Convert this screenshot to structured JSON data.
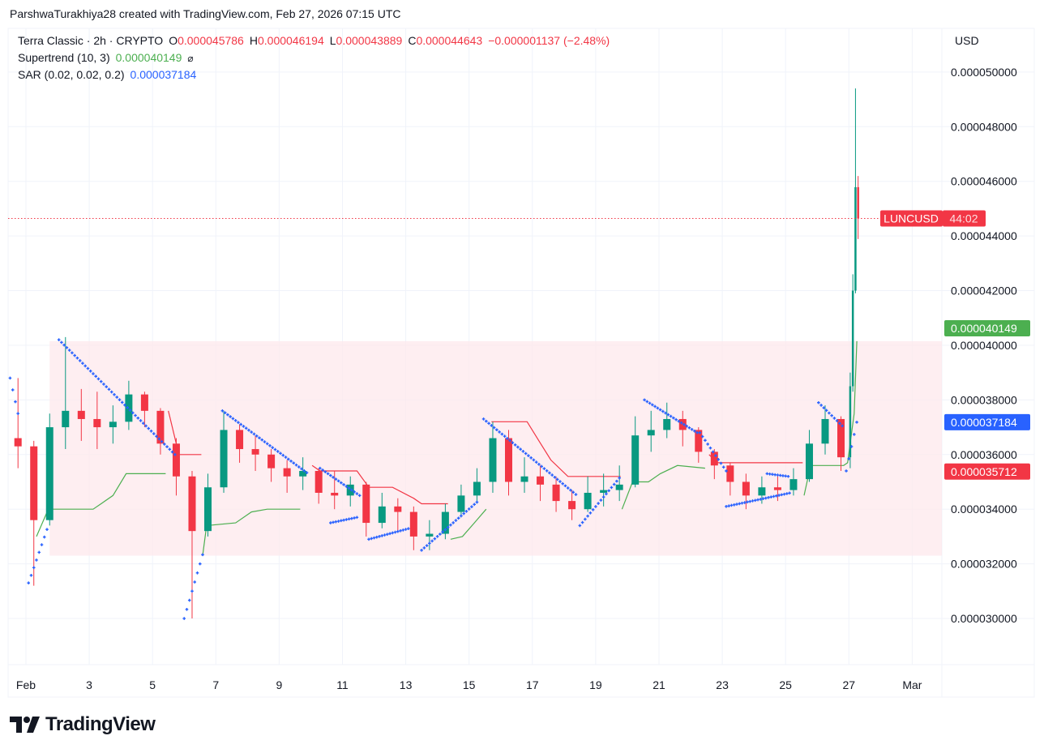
{
  "header": {
    "credit": "ParshwaTurakhiya28 created with TradingView.com, Feb 27, 2026 07:15 UTC"
  },
  "legend": {
    "symbol": "Terra Classic · 2h · CRYPTO",
    "open_label": "O",
    "open": "0.000045786",
    "high_label": "H",
    "high": "0.000046194",
    "low_label": "L",
    "low": "0.000043889",
    "close_label": "C",
    "close": "0.000044643",
    "change": "−0.000001137 (−2.48%)",
    "supertrend": {
      "label": "Supertrend (10, 3)",
      "value": "0.000040149",
      "icon": "eye-off-icon",
      "glyph": "⌀"
    },
    "sar": {
      "label": "SAR (0.02, 0.02, 0.2)",
      "value": "0.000037184"
    }
  },
  "price_axis": {
    "currency": "USD",
    "ticks": [
      "0.000030000",
      "0.000032000",
      "0.000034000",
      "0.000036000",
      "0.000038000",
      "0.000040000",
      "0.000042000",
      "0.000044000",
      "0.000046000",
      "0.000048000",
      "0.000050000"
    ],
    "badges": [
      {
        "name": "supertrend-badge",
        "text": "0.000040149",
        "value": 4.0149e-05,
        "color": "#4caf50"
      },
      {
        "name": "sar-badge",
        "text": "0.000037184",
        "value": 3.7184e-05,
        "color": "#2962ff"
      },
      {
        "name": "secondary-price-badge",
        "text": "0.000035712",
        "value": 3.5712e-05,
        "color": "#f23645"
      }
    ],
    "last_price_badge": {
      "symbol": "LUNCUSD",
      "countdown": "44:02",
      "color": "#f23645"
    }
  },
  "date_axis": {
    "labels": [
      "Feb",
      "3",
      "5",
      "7",
      "9",
      "11",
      "13",
      "15",
      "17",
      "19",
      "21",
      "23",
      "25",
      "27",
      "Mar"
    ],
    "dates": [
      "2026-02-01",
      "2026-02-03",
      "2026-02-05",
      "2026-02-07",
      "2026-02-09",
      "2026-02-11",
      "2026-02-13",
      "2026-02-15",
      "2026-02-17",
      "2026-02-19",
      "2026-02-21",
      "2026-02-23",
      "2026-02-25",
      "2026-02-27",
      "2026-03-01"
    ]
  },
  "brand": {
    "name": "TradingView"
  },
  "colors": {
    "up": "#089981",
    "down": "#f23645",
    "supertrend_up": "#4caf50",
    "supertrend_down": "#f23645",
    "sar": "#2962ff",
    "range_box": "#fde8ec",
    "grid": "#f0f3fa"
  },
  "chart_data": {
    "type": "candlestick",
    "symbol": "LUNCUSD",
    "interval": "2h",
    "xlim": [
      "2026-01-31T10:30",
      "2026-03-01T22:30"
    ],
    "ylim": [
      2.831e-05,
      5.145e-05
    ],
    "grid": true,
    "last_price": 4.4643e-05,
    "candles_columns": [
      "time",
      "open",
      "high",
      "low",
      "close"
    ],
    "candles": [
      [
        "2026-01-31T12:00",
        3.66e-05,
        3.88e-05,
        3.55e-05,
        3.63e-05
      ],
      [
        "2026-02-01T00:00",
        3.63e-05,
        3.65e-05,
        3.12e-05,
        3.36e-05
      ],
      [
        "2026-02-01T12:00",
        3.36e-05,
        3.75e-05,
        3.34e-05,
        3.7e-05
      ],
      [
        "2026-02-02T00:00",
        3.7e-05,
        4.03e-05,
        3.62e-05,
        3.76e-05
      ],
      [
        "2026-02-02T12:00",
        3.76e-05,
        3.84e-05,
        3.65e-05,
        3.73e-05
      ],
      [
        "2026-02-03T00:00",
        3.73e-05,
        3.83e-05,
        3.62e-05,
        3.7e-05
      ],
      [
        "2026-02-03T12:00",
        3.7e-05,
        3.78e-05,
        3.64e-05,
        3.72e-05
      ],
      [
        "2026-02-04T00:00",
        3.72e-05,
        3.87e-05,
        3.69e-05,
        3.82e-05
      ],
      [
        "2026-02-04T12:00",
        3.82e-05,
        3.83e-05,
        3.7e-05,
        3.76e-05
      ],
      [
        "2026-02-05T00:00",
        3.76e-05,
        3.77e-05,
        3.6e-05,
        3.64e-05
      ],
      [
        "2026-02-05T12:00",
        3.64e-05,
        3.66e-05,
        3.45e-05,
        3.52e-05
      ],
      [
        "2026-02-06T00:00",
        3.52e-05,
        3.54e-05,
        3e-05,
        3.32e-05
      ],
      [
        "2026-02-06T12:00",
        3.32e-05,
        3.53e-05,
        3.3e-05,
        3.48e-05
      ],
      [
        "2026-02-07T00:00",
        3.48e-05,
        3.76e-05,
        3.46e-05,
        3.69e-05
      ],
      [
        "2026-02-07T12:00",
        3.69e-05,
        3.71e-05,
        3.57e-05,
        3.62e-05
      ],
      [
        "2026-02-08T00:00",
        3.62e-05,
        3.67e-05,
        3.54e-05,
        3.6e-05
      ],
      [
        "2026-02-08T12:00",
        3.6e-05,
        3.62e-05,
        3.5e-05,
        3.55e-05
      ],
      [
        "2026-02-09T00:00",
        3.55e-05,
        3.58e-05,
        3.46e-05,
        3.52e-05
      ],
      [
        "2026-02-09T12:00",
        3.52e-05,
        3.59e-05,
        3.47e-05,
        3.54e-05
      ],
      [
        "2026-02-10T00:00",
        3.54e-05,
        3.55e-05,
        3.42e-05,
        3.46e-05
      ],
      [
        "2026-02-10T12:00",
        3.46e-05,
        3.54e-05,
        3.4e-05,
        3.45e-05
      ],
      [
        "2026-02-11T00:00",
        3.45e-05,
        3.52e-05,
        3.41e-05,
        3.49e-05
      ],
      [
        "2026-02-11T12:00",
        3.49e-05,
        3.5e-05,
        3.3e-05,
        3.35e-05
      ],
      [
        "2026-02-12T00:00",
        3.35e-05,
        3.46e-05,
        3.33e-05,
        3.41e-05
      ],
      [
        "2026-02-12T12:00",
        3.41e-05,
        3.44e-05,
        3.32e-05,
        3.39e-05
      ],
      [
        "2026-02-13T00:00",
        3.39e-05,
        3.41e-05,
        3.25e-05,
        3.3e-05
      ],
      [
        "2026-02-13T12:00",
        3.3e-05,
        3.36e-05,
        3.25e-05,
        3.31e-05
      ],
      [
        "2026-02-14T00:00",
        3.31e-05,
        3.42e-05,
        3.29e-05,
        3.39e-05
      ],
      [
        "2026-02-14T12:00",
        3.39e-05,
        3.49e-05,
        3.37e-05,
        3.45e-05
      ],
      [
        "2026-02-15T00:00",
        3.45e-05,
        3.55e-05,
        3.42e-05,
        3.5e-05
      ],
      [
        "2026-02-15T12:00",
        3.5e-05,
        3.72e-05,
        3.46e-05,
        3.66e-05
      ],
      [
        "2026-02-16T00:00",
        3.66e-05,
        3.69e-05,
        3.45e-05,
        3.5e-05
      ],
      [
        "2026-02-16T12:00",
        3.5e-05,
        3.59e-05,
        3.46e-05,
        3.52e-05
      ],
      [
        "2026-02-17T00:00",
        3.52e-05,
        3.56e-05,
        3.43e-05,
        3.49e-05
      ],
      [
        "2026-02-17T12:00",
        3.49e-05,
        3.52e-05,
        3.39e-05,
        3.43e-05
      ],
      [
        "2026-02-18T00:00",
        3.43e-05,
        3.47e-05,
        3.36e-05,
        3.4e-05
      ],
      [
        "2026-02-18T12:00",
        3.4e-05,
        3.52e-05,
        3.39e-05,
        3.46e-05
      ],
      [
        "2026-02-19T00:00",
        3.46e-05,
        3.53e-05,
        3.41e-05,
        3.47e-05
      ],
      [
        "2026-02-19T12:00",
        3.47e-05,
        3.56e-05,
        3.43e-05,
        3.49e-05
      ],
      [
        "2026-02-20T00:00",
        3.49e-05,
        3.74e-05,
        3.48e-05,
        3.67e-05
      ],
      [
        "2026-02-20T12:00",
        3.67e-05,
        3.76e-05,
        3.61e-05,
        3.69e-05
      ],
      [
        "2026-02-21T00:00",
        3.69e-05,
        3.79e-05,
        3.66e-05,
        3.73e-05
      ],
      [
        "2026-02-21T12:00",
        3.73e-05,
        3.76e-05,
        3.63e-05,
        3.69e-05
      ],
      [
        "2026-02-22T00:00",
        3.69e-05,
        3.7e-05,
        3.57e-05,
        3.61e-05
      ],
      [
        "2026-02-22T12:00",
        3.61e-05,
        3.62e-05,
        3.51e-05,
        3.56e-05
      ],
      [
        "2026-02-23T00:00",
        3.56e-05,
        3.57e-05,
        3.45e-05,
        3.5e-05
      ],
      [
        "2026-02-23T12:00",
        3.5e-05,
        3.53e-05,
        3.4e-05,
        3.45e-05
      ],
      [
        "2026-02-24T00:00",
        3.45e-05,
        3.52e-05,
        3.42e-05,
        3.48e-05
      ],
      [
        "2026-02-24T12:00",
        3.48e-05,
        3.52e-05,
        3.43e-05,
        3.47e-05
      ],
      [
        "2026-02-25T00:00",
        3.47e-05,
        3.55e-05,
        3.45e-05,
        3.51e-05
      ],
      [
        "2026-02-25T12:00",
        3.51e-05,
        3.69e-05,
        3.5e-05,
        3.64e-05
      ],
      [
        "2026-02-26T00:00",
        3.64e-05,
        3.78e-05,
        3.6e-05,
        3.73e-05
      ],
      [
        "2026-02-26T12:00",
        3.73e-05,
        3.74e-05,
        3.54e-05,
        3.59e-05
      ],
      [
        "2026-02-27T00:00",
        3.59e-05,
        3.9e-05,
        3.55e-05,
        3.85e-05
      ],
      [
        "2026-02-27T02:00",
        3.85e-05,
        4.26e-05,
        3.83e-05,
        4.2e-05
      ],
      [
        "2026-02-27T04:00",
        4.2e-05,
        4.94e-05,
        4.19e-05,
        4.5786e-05
      ],
      [
        "2026-02-27T06:00",
        4.5786e-05,
        4.6194e-05,
        4.3889e-05,
        4.4643e-05
      ]
    ],
    "supertrend": {
      "params": "10, 3",
      "segments": [
        {
          "dir": "up",
          "points": [
            [
              "2026-02-01T08:00",
              3.3e-05
            ],
            [
              "2026-02-01T17:00",
              3.4e-05
            ],
            [
              "2026-02-03T03:00",
              3.4e-05
            ],
            [
              "2026-02-03T09:00",
              3.42e-05
            ],
            [
              "2026-02-03T18:00",
              3.45e-05
            ],
            [
              "2026-02-04T04:00",
              3.53e-05
            ],
            [
              "2026-02-05T10:00",
              3.53e-05
            ]
          ]
        },
        {
          "dir": "down",
          "points": [
            [
              "2026-02-05T12:00",
              3.76e-05
            ],
            [
              "2026-02-05T20:00",
              3.6e-05
            ],
            [
              "2026-02-06T13:00",
              3.6e-05
            ]
          ]
        },
        {
          "dir": "up",
          "points": [
            [
              "2026-02-06T14:00",
              3.23e-05
            ],
            [
              "2026-02-06T17:00",
              3.34e-05
            ],
            [
              "2026-02-07T15:00",
              3.35e-05
            ],
            [
              "2026-02-08T03:00",
              3.39e-05
            ],
            [
              "2026-02-08T15:00",
              3.4e-05
            ],
            [
              "2026-02-09T16:00",
              3.4e-05
            ]
          ]
        },
        {
          "dir": "down",
          "points": [
            [
              "2026-02-10T01:00",
              3.56e-05
            ],
            [
              "2026-02-10T07:00",
              3.54e-05
            ],
            [
              "2026-02-11T11:00",
              3.54e-05
            ],
            [
              "2026-02-11T20:00",
              3.48e-05
            ],
            [
              "2026-02-12T14:00",
              3.48e-05
            ],
            [
              "2026-02-13T06:00",
              3.44e-05
            ],
            [
              "2026-02-13T12:00",
              3.42e-05
            ],
            [
              "2026-02-14T08:00",
              3.42e-05
            ]
          ]
        },
        {
          "dir": "up",
          "points": [
            [
              "2026-02-14T10:00",
              3.29e-05
            ],
            [
              "2026-02-14T19:00",
              3.3e-05
            ],
            [
              "2026-02-15T04:00",
              3.35e-05
            ],
            [
              "2026-02-15T13:00",
              3.4e-05
            ]
          ]
        },
        {
          "dir": "down",
          "points": [
            [
              "2026-02-15T17:00",
              3.72e-05
            ],
            [
              "2026-02-16T20:00",
              3.72e-05
            ],
            [
              "2026-02-17T05:00",
              3.65e-05
            ],
            [
              "2026-02-17T14:00",
              3.58e-05
            ],
            [
              "2026-02-18T03:00",
              3.52e-05
            ],
            [
              "2026-02-19T19:00",
              3.52e-05
            ]
          ]
        },
        {
          "dir": "up",
          "points": [
            [
              "2026-02-19T20:00",
              3.4e-05
            ],
            [
              "2026-02-20T04:00",
              3.5e-05
            ],
            [
              "2026-02-20T16:00",
              3.5e-05
            ],
            [
              "2026-02-21T01:00",
              3.53e-05
            ],
            [
              "2026-02-21T14:00",
              3.56e-05
            ],
            [
              "2026-02-22T11:00",
              3.55e-05
            ]
          ]
        },
        {
          "dir": "down",
          "points": [
            [
              "2026-02-22T14:00",
              3.6e-05
            ],
            [
              "2026-02-22T20:00",
              3.57e-05
            ],
            [
              "2026-02-25T13:00",
              3.57e-05
            ]
          ]
        },
        {
          "dir": "up",
          "points": [
            [
              "2026-02-25T14:00",
              3.45e-05
            ],
            [
              "2026-02-25T19:00",
              3.56e-05
            ],
            [
              "2026-02-26T20:00",
              3.56e-05
            ],
            [
              "2026-02-26T23:00",
              3.57e-05
            ],
            [
              "2026-02-27T04:00",
              3.75e-05
            ],
            [
              "2026-02-27T06:00",
              4.0149e-05
            ]
          ]
        }
      ]
    },
    "sar": {
      "params": "0.02, 0.02, 0.2",
      "segments": [
        {
          "from": [
            "2026-01-31T12:00",
            3.88e-05
          ],
          "to": [
            "2026-01-31T18:00",
            3.75e-05
          ]
        },
        {
          "from": [
            "2026-02-01T02:00",
            3.13e-05
          ],
          "to": [
            "2026-02-01T17:00",
            3.34e-05
          ]
        },
        {
          "from": [
            "2026-02-02T01:00",
            4.02e-05
          ],
          "to": [
            "2026-02-05T17:00",
            3.6e-05
          ]
        },
        {
          "from": [
            "2026-02-06T00:00",
            3e-05
          ],
          "to": [
            "2026-02-06T15:00",
            3.25e-05
          ]
        },
        {
          "from": [
            "2026-02-07T05:00",
            3.76e-05
          ],
          "to": [
            "2026-02-09T22:00",
            3.53e-05
          ]
        },
        {
          "from": [
            "2026-02-10T07:00",
            3.55e-05
          ],
          "to": [
            "2026-02-11T13:00",
            3.45e-05
          ]
        },
        {
          "from": [
            "2026-02-10T15:00",
            3.35e-05
          ],
          "to": [
            "2026-02-11T11:00",
            3.37e-05
          ]
        },
        {
          "from": [
            "2026-02-11T20:00",
            3.29e-05
          ],
          "to": [
            "2026-02-13T03:00",
            3.33e-05
          ]
        },
        {
          "from": [
            "2026-02-13T12:00",
            3.25e-05
          ],
          "to": [
            "2026-02-15T07:00",
            3.43e-05
          ]
        },
        {
          "from": [
            "2026-02-15T11:00",
            3.73e-05
          ],
          "to": [
            "2026-02-18T10:00",
            3.45e-05
          ]
        },
        {
          "from": [
            "2026-02-18T12:00",
            3.34e-05
          ],
          "to": [
            "2026-02-19T19:00",
            3.52e-05
          ]
        },
        {
          "from": [
            "2026-02-20T13:00",
            3.8e-05
          ],
          "to": [
            "2026-02-22T05:00",
            3.68e-05
          ]
        },
        {
          "from": [
            "2026-02-22T07:00",
            3.68e-05
          ],
          "to": [
            "2026-02-23T03:00",
            3.54e-05
          ]
        },
        {
          "from": [
            "2026-02-23T03:00",
            3.41e-05
          ],
          "to": [
            "2026-02-25T04:00",
            3.46e-05
          ]
        },
        {
          "from": [
            "2026-02-24T10:00",
            3.53e-05
          ],
          "to": [
            "2026-02-25T02:00",
            3.52e-05
          ]
        },
        {
          "from": [
            "2026-02-26T01:00",
            3.79e-05
          ],
          "to": [
            "2026-02-26T20:00",
            3.7e-05
          ]
        },
        {
          "from": [
            "2026-02-26T22:00",
            3.54e-05
          ],
          "to": [
            "2026-02-27T06:00",
            3.7184e-05
          ]
        }
      ]
    },
    "range_box": {
      "from": "2026-02-01T18:00",
      "top": 4.015e-05,
      "bottom": 3.23e-05,
      "extends": "right"
    }
  }
}
